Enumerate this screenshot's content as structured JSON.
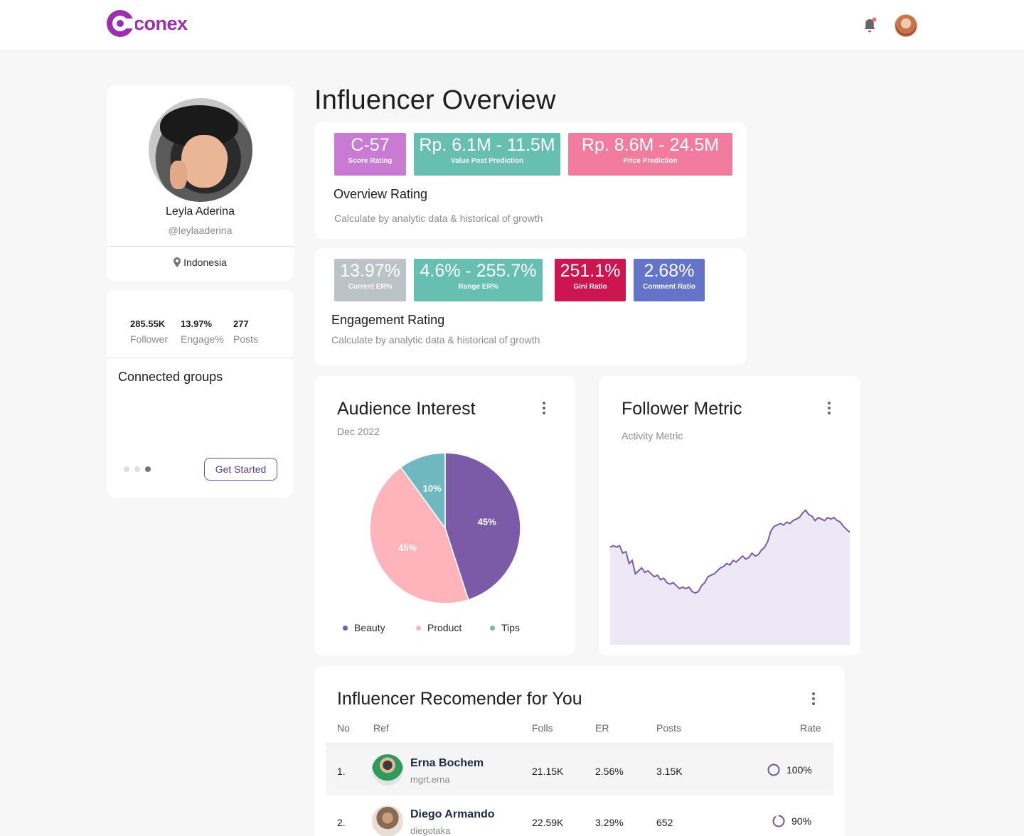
{
  "brand": {
    "name": "conex",
    "color": "#9b2fae"
  },
  "topbar": {
    "bell_icon": "bell-icon",
    "notification_dot_color": "#f26a6a"
  },
  "profile": {
    "name": "Leyla Aderina",
    "handle": "@leylaaderina",
    "location": "Indonesia",
    "stats": [
      {
        "value": "285.55K",
        "label": "Follower"
      },
      {
        "value": "13.97%",
        "label": "Engage%"
      },
      {
        "value": "277",
        "label": "Posts"
      }
    ],
    "connected_groups_title": "Connected groups",
    "get_started_label": "Get Started",
    "carousel_dots": 3,
    "carousel_active": 3
  },
  "page_title": "Influencer Overview",
  "overview": {
    "tiles": [
      {
        "value": "C-57",
        "label": "Score Rating",
        "color": "#c97ad3"
      },
      {
        "value": "Rp. 6.1M - 11.5M",
        "label": "Value Post Prediction",
        "color": "#67bfb2"
      },
      {
        "value": "Rp. 8.6M - 24.5M",
        "label": "Price Prediction",
        "color": "#f27c9f"
      }
    ],
    "title": "Overview Rating",
    "subtitle": "Calculate by analytic data & historical of growth"
  },
  "engagement": {
    "tiles": [
      {
        "value": "13.97%",
        "label": "Current ER%",
        "color": "#bcc3c8"
      },
      {
        "value": "4.6% - 255.7%",
        "label": "Range ER%",
        "color": "#67bfb2"
      },
      {
        "value": "251.1%",
        "label": "Gini Ratio",
        "color": "#cc1551"
      },
      {
        "value": "2.68%",
        "label": "Comment Ratio",
        "color": "#6474c8"
      }
    ],
    "title": "Engagement Rating",
    "subtitle": "Calculate by analytic data & historical of growth"
  },
  "audience": {
    "title": "Audience Interest",
    "subtitle": "Dec 2022",
    "chart_data": {
      "type": "pie",
      "series": [
        {
          "name": "Beauty",
          "value": 45,
          "label": "45%",
          "color": "#7b5ba8"
        },
        {
          "name": "Product",
          "value": 45,
          "label": "45%",
          "color": "#ffb3ba"
        },
        {
          "name": "Tips",
          "value": 10,
          "label": "10%",
          "color": "#6fb8c0"
        }
      ]
    }
  },
  "follower_metric": {
    "title": "Follower Metric",
    "subtitle": "Activity Metric",
    "chart_data": {
      "type": "area",
      "line_color": "#7b5ba8",
      "fill_color": "#ede8f5",
      "y_range": [
        0,
        100
      ],
      "values": [
        66,
        67,
        66,
        67,
        62,
        63,
        55,
        57,
        48,
        50,
        52,
        49,
        50,
        48,
        46,
        47,
        44,
        45,
        42,
        41,
        42,
        40,
        38,
        39,
        38,
        39,
        36,
        35,
        36,
        40,
        42,
        46,
        47,
        48,
        50,
        52,
        53,
        55,
        54,
        57,
        56,
        58,
        60,
        58,
        59,
        62,
        60,
        61,
        64,
        66,
        70,
        77,
        80,
        81,
        82,
        81,
        83,
        82,
        84,
        85,
        86,
        89,
        91,
        88,
        87,
        84,
        86,
        85,
        84,
        86,
        85,
        86,
        84,
        83,
        80,
        78,
        76
      ]
    }
  },
  "recommender": {
    "title": "Influencer Recomender for You",
    "columns": [
      "No",
      "Ref",
      "Folls",
      "ER",
      "Posts",
      "Rate"
    ],
    "rows": [
      {
        "no": "1.",
        "name": "Erna Bochem",
        "handle": "mgrt.erna",
        "folls": "21.15K",
        "er": "2.56%",
        "posts": "3.15K",
        "rate": "100%",
        "rate_fraction": 1.0
      },
      {
        "no": "2.",
        "name": "Diego Armando",
        "handle": "diegotaka",
        "folls": "22.59K",
        "er": "3.29%",
        "posts": "652",
        "rate": "90%",
        "rate_fraction": 0.9
      }
    ]
  }
}
